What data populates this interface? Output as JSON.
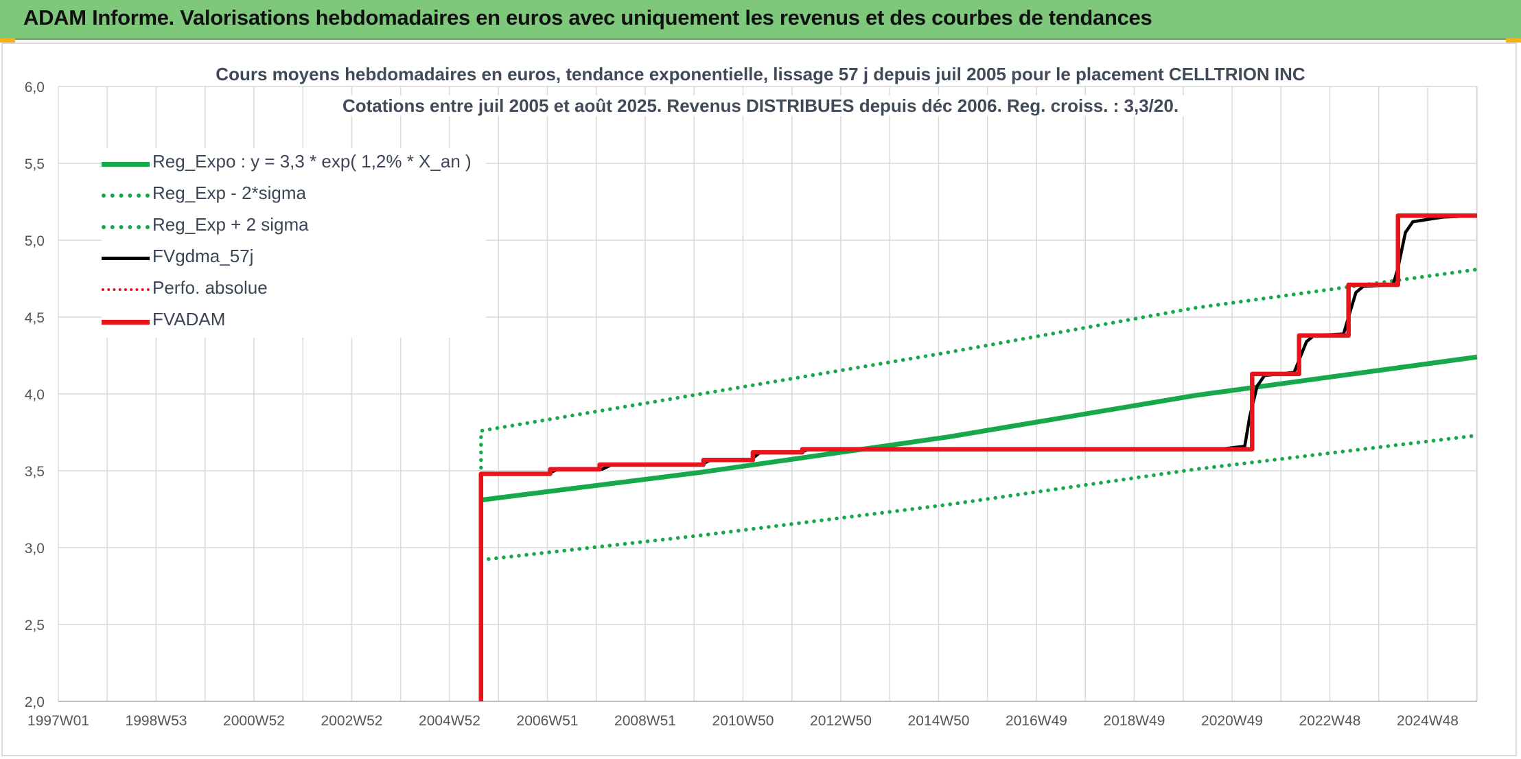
{
  "header": {
    "title": "ADAM Informe. Valorisations hebdomadaires en euros avec uniquement les revenus et des courbes de tendances"
  },
  "chart_data": {
    "type": "line",
    "title_line1": "Cours moyens hebdomadaires en euros, tendance exponentielle, lissage 57 j depuis juil 2005 pour le placement CELLTRION INC",
    "title_line2": "Cotations entre juil 2005 et août 2025. Revenus DISTRIBUES depuis déc 2006. Reg. croiss. : 3,3/20.",
    "x_tick_labels": [
      "1997W01",
      "1998W53",
      "2000W52",
      "2002W52",
      "2004W52",
      "2006W51",
      "2008W51",
      "2010W50",
      "2012W50",
      "2014W50",
      "2016W49",
      "2018W49",
      "2020W49",
      "2022W48",
      "2024W48"
    ],
    "y_tick_labels": [
      "2,0",
      "2,5",
      "3,0",
      "3,5",
      "4,0",
      "4,5",
      "5,0",
      "5,5",
      "6,0"
    ],
    "xlim": [
      1997.0,
      2025.7
    ],
    "ylim": [
      2.0,
      6.0
    ],
    "grid": true,
    "legend_position": "top-left",
    "series": [
      {
        "name": "Reg_Expo : y = 3,3 * exp( 1,2% *  X_an )",
        "color": "#16a84a",
        "style": "solid",
        "x": [
          2005.55,
          2010.0,
          2015.0,
          2020.0,
          2025.7
        ],
        "y": [
          3.31,
          3.49,
          3.72,
          3.99,
          4.24
        ]
      },
      {
        "name": "Reg_Exp - 2*sigma",
        "color": "#16a84a",
        "style": "dotted",
        "x": [
          2005.55,
          2010.0,
          2015.0,
          2020.0,
          2025.7
        ],
        "y": [
          2.92,
          3.08,
          3.28,
          3.51,
          3.73
        ]
      },
      {
        "name": "Reg_Exp + 2 sigma",
        "color": "#16a84a",
        "style": "dotted",
        "x": [
          2005.55,
          2005.55,
          2010.0,
          2015.0,
          2020.0,
          2025.7
        ],
        "y": [
          3.52,
          3.76,
          4.0,
          4.27,
          4.56,
          4.81
        ]
      },
      {
        "name": "FVgdma_57j",
        "color": "#000000",
        "style": "solid",
        "x": [
          2005.55,
          2006.9,
          2007.1,
          2008.0,
          2008.2,
          2010.0,
          2010.2,
          2011.0,
          2011.2,
          2012.0,
          2012.2,
          2020.5,
          2021.0,
          2021.1,
          2021.25,
          2021.4,
          2022.0,
          2022.1,
          2022.25,
          2022.4,
          2023.0,
          2023.1,
          2023.25,
          2023.4,
          2024.0,
          2024.1,
          2024.25,
          2024.4,
          2025.0,
          2025.7
        ],
        "y": [
          3.48,
          3.48,
          3.51,
          3.51,
          3.54,
          3.54,
          3.57,
          3.57,
          3.62,
          3.62,
          3.64,
          3.64,
          3.66,
          3.85,
          4.05,
          4.12,
          4.14,
          4.22,
          4.34,
          4.38,
          4.39,
          4.5,
          4.66,
          4.7,
          4.71,
          4.82,
          5.05,
          5.12,
          5.15,
          5.16
        ]
      },
      {
        "name": "Perfo. absolue",
        "color": "#e8141b",
        "style": "dotted",
        "x": [],
        "y": []
      },
      {
        "name": "FVADAM",
        "color": "#e8141b",
        "style": "solid",
        "x": [
          2005.55,
          2005.55,
          2006.95,
          2006.95,
          2007.95,
          2007.95,
          2010.05,
          2010.05,
          2011.05,
          2011.05,
          2012.05,
          2012.05,
          2021.15,
          2021.15,
          2022.1,
          2022.1,
          2023.1,
          2023.1,
          2024.1,
          2024.1,
          2025.7
        ],
        "y": [
          2.0,
          3.48,
          3.48,
          3.51,
          3.51,
          3.54,
          3.54,
          3.57,
          3.57,
          3.62,
          3.62,
          3.64,
          3.64,
          4.13,
          4.13,
          4.38,
          4.38,
          4.71,
          4.71,
          5.16,
          5.16
        ]
      }
    ]
  }
}
